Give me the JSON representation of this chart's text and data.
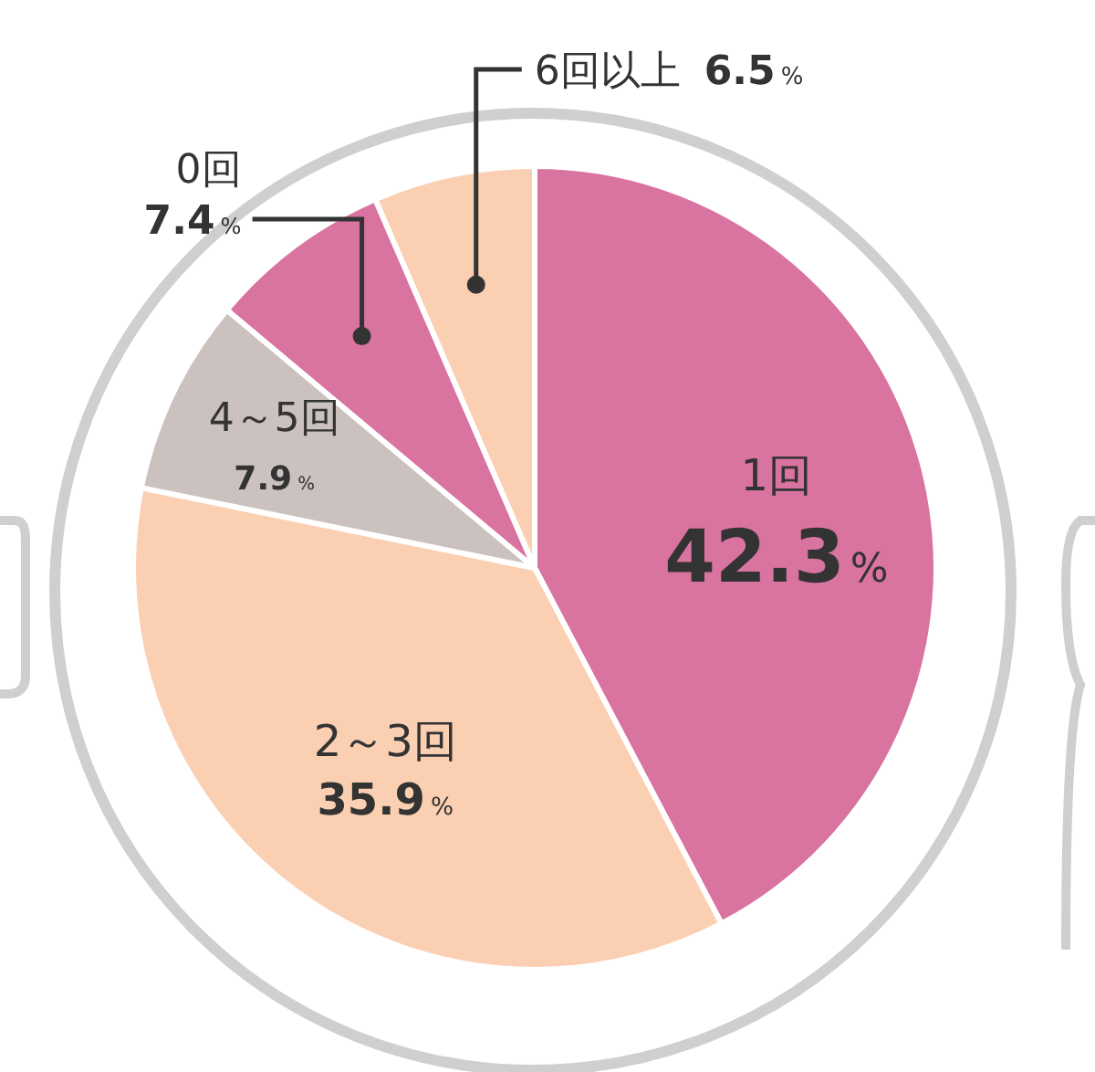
{
  "chart_data": {
    "type": "pie",
    "categories": [
      "1回",
      "2～3回",
      "4～5回",
      "0回",
      "6回以上"
    ],
    "values": [
      42.3,
      35.9,
      7.9,
      7.4,
      6.5
    ],
    "value_labels": [
      "42.3%",
      "35.9%",
      "7.9%",
      "7.4%",
      "6.5%"
    ],
    "colors": [
      "#d9739f",
      "#fbcfb2",
      "#cbc1be",
      "#d9739f",
      "#fbcfb2"
    ]
  }
}
